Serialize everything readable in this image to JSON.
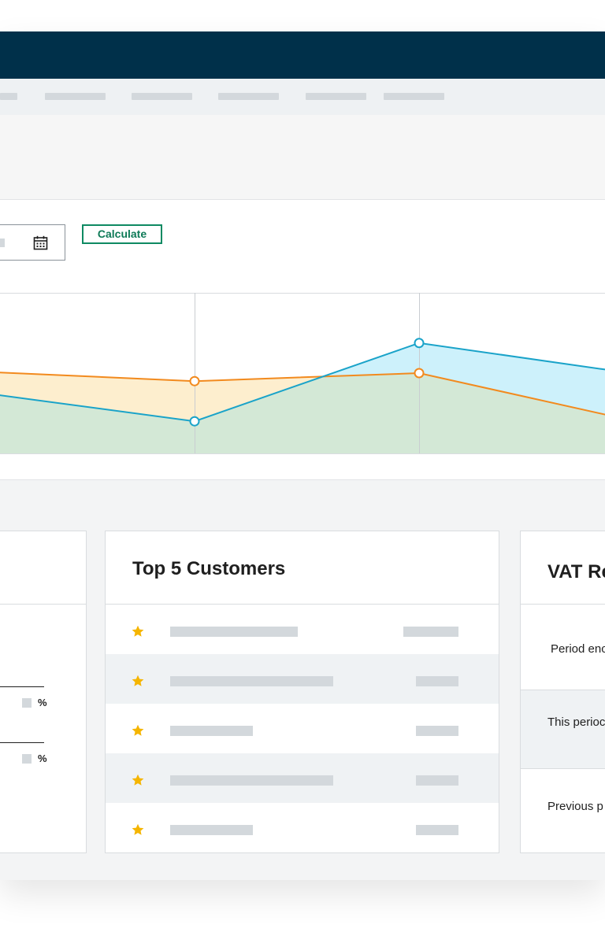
{
  "form": {
    "calculate_label": "Calculate"
  },
  "chart_data": {
    "type": "area",
    "series": [
      {
        "values": [
          4.1,
          3.6,
          4.0,
          1.5
        ],
        "color": "#f28a1e"
      },
      {
        "values": [
          3.1,
          1.6,
          5.5,
          3.9
        ],
        "color": "#1aa3c9"
      }
    ],
    "ylim": [
      0,
      8
    ],
    "grid": true
  },
  "customers": {
    "title": "Top 5 Customers",
    "rows": [
      {
        "star": "star-icon"
      },
      {
        "star": "star-icon"
      },
      {
        "star": "star-icon"
      },
      {
        "star": "star-icon"
      },
      {
        "star": "star-icon"
      }
    ]
  },
  "left_card": {
    "pct_1": "%",
    "pct_2": "%"
  },
  "vat": {
    "title": "VAT Re",
    "period_end": "Period enc",
    "this_period": "This perioc",
    "previous_period": "Previous p"
  },
  "colors": {
    "topbar": "#00304a",
    "accent_green": "#0e8a62",
    "star": "#f5b500"
  }
}
